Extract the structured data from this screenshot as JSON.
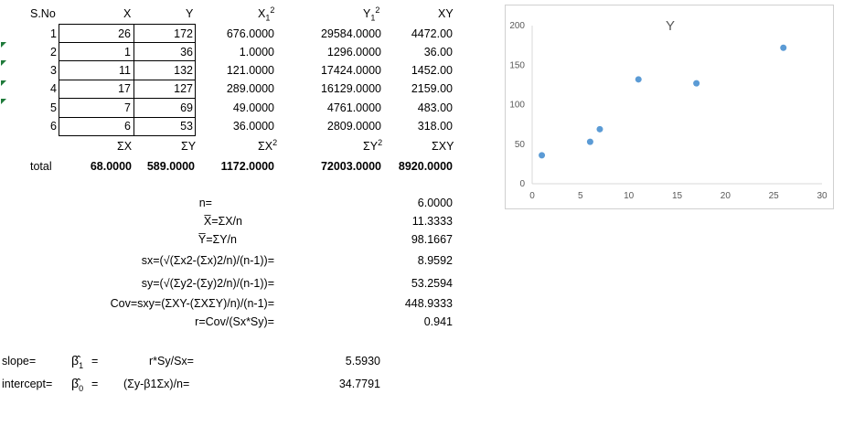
{
  "table": {
    "headers": {
      "sno": "S.No",
      "x": "X",
      "y": "Y",
      "x2": "X",
      "x2_sub": "1",
      "x2_sup": "2",
      "y2": "Y",
      "y2_sub": "1",
      "y2_sup": "2",
      "xy": "XY"
    },
    "rows": [
      {
        "sno": "1",
        "x": "26",
        "y": "172",
        "x2": "676.0000",
        "y2": "29584.0000",
        "xy": "4472.00"
      },
      {
        "sno": "2",
        "x": "1",
        "y": "36",
        "x2": "1.0000",
        "y2": "1296.0000",
        "xy": "36.00"
      },
      {
        "sno": "3",
        "x": "11",
        "y": "132",
        "x2": "121.0000",
        "y2": "17424.0000",
        "xy": "1452.00"
      },
      {
        "sno": "4",
        "x": "17",
        "y": "127",
        "x2": "289.0000",
        "y2": "16129.0000",
        "xy": "2159.00"
      },
      {
        "sno": "5",
        "x": "7",
        "y": "69",
        "x2": "49.0000",
        "y2": "4761.0000",
        "xy": "483.00"
      },
      {
        "sno": "6",
        "x": "6",
        "y": "53",
        "x2": "36.0000",
        "y2": "2809.0000",
        "xy": "318.00"
      }
    ],
    "sum_labels": {
      "x": "ΣX",
      "y": "ΣY",
      "x2": "ΣX",
      "x2_sup": "2",
      "y2": "ΣY",
      "y2_sup": "2",
      "xy": "ΣXY"
    },
    "total_label": "total",
    "totals": {
      "x": "68.0000",
      "y": "589.0000",
      "x2": "1172.0000",
      "y2": "72003.0000",
      "xy": "8920.0000"
    }
  },
  "stats": [
    {
      "label": "n=",
      "value": "6.0000"
    },
    {
      "label": "X̅=ΣX/n",
      "value": "11.3333"
    },
    {
      "label": "Y̅=ΣY/n",
      "value": "98.1667"
    },
    {
      "label": "sx=(√(Σx2-(Σx)2/n)/(n-1))=",
      "value": "8.9592"
    },
    {
      "label": "sy=(√(Σy2-(Σy)2/n)/(n-1))=",
      "value": "53.2594"
    },
    {
      "label": "Cov=sxy=(ΣXY-(ΣXΣY)/n)/(n-1)=",
      "value": "448.9333"
    },
    {
      "label": "r=Cov/(Sx*Sy)=",
      "value": "0.941"
    }
  ],
  "regression": {
    "slope": {
      "label": "slope=",
      "symbol": "β̂",
      "sub": "1",
      "eq": "=",
      "formula": "r*Sy/Sx=",
      "value": "5.5930"
    },
    "intercept": {
      "label": "intercept=",
      "symbol": "β̂",
      "sub": "0",
      "eq": "=",
      "formula": "(Σy-β1Σx)/n=",
      "value": "34.7791"
    }
  },
  "chart_data": {
    "type": "scatter",
    "title": "Y",
    "x": [
      26,
      1,
      11,
      17,
      7,
      6
    ],
    "y": [
      172,
      36,
      132,
      127,
      69,
      53
    ],
    "xlim": [
      0,
      30
    ],
    "ylim": [
      0,
      200
    ],
    "xticks": [
      0,
      5,
      10,
      15,
      20,
      25,
      30
    ],
    "yticks": [
      0,
      50,
      100,
      150,
      200
    ],
    "marker_color": "#5b9bd5",
    "grid": false
  }
}
